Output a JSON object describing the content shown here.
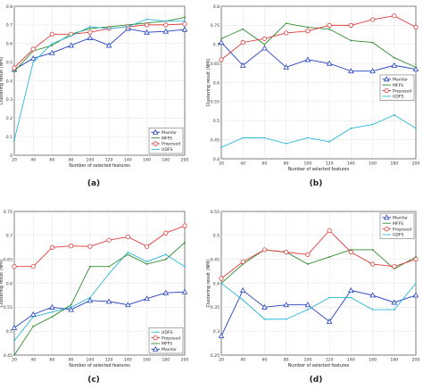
{
  "figure": {
    "panel_labels": [
      "(a)",
      "(b)",
      "(c)",
      "(d)"
    ]
  },
  "chart_data": [
    {
      "type": "line",
      "panel": "(a)",
      "xlabel": "Number of selected features",
      "ylabel": "Clustering result (NMI)",
      "x": [
        20,
        40,
        60,
        80,
        100,
        120,
        140,
        160,
        180,
        200
      ],
      "xticks": [
        "20",
        "40",
        "60",
        "80",
        "100",
        "120",
        "140",
        "160",
        "180",
        "200"
      ],
      "xlim": [
        20,
        200
      ],
      "ylim": [
        0,
        0.8
      ],
      "yticks": [
        0,
        0.1,
        0.2,
        0.3,
        0.4,
        0.5,
        0.6,
        0.7,
        0.8
      ],
      "ytick_labels": [
        "0",
        "0.1",
        "0.2",
        "0.3",
        "0.4",
        "0.5",
        "0.6",
        "0.7",
        "0.8"
      ],
      "grid": true,
      "legend": "bottom-right",
      "series": [
        {
          "name": "MaxVar",
          "color": "#1f3fbf",
          "marker": "triangle",
          "values": [
            0.46,
            0.52,
            0.55,
            0.59,
            0.63,
            0.59,
            0.68,
            0.66,
            0.665,
            0.675
          ]
        },
        {
          "name": "MFFS",
          "color": "#2e8b2e",
          "marker": "none",
          "values": [
            0.45,
            0.56,
            0.59,
            0.65,
            0.68,
            0.69,
            0.7,
            0.71,
            0.72,
            0.74
          ]
        },
        {
          "name": "Proposed",
          "color": "#e03a3a",
          "marker": "circle",
          "values": [
            0.47,
            0.57,
            0.65,
            0.65,
            0.66,
            0.68,
            0.69,
            0.7,
            0.7,
            0.705
          ]
        },
        {
          "name": "UDFS",
          "color": "#2ab8d8",
          "marker": "none",
          "values": [
            0.08,
            0.5,
            0.6,
            0.64,
            0.69,
            0.68,
            0.69,
            0.73,
            0.72,
            0.72
          ]
        }
      ]
    },
    {
      "type": "line",
      "panel": "(b)",
      "xlabel": "Number of selected features",
      "ylabel": "Clustering result (NMI)",
      "x": [
        20,
        40,
        60,
        80,
        100,
        120,
        140,
        160,
        180,
        200
      ],
      "xticks": [
        "20",
        "40",
        "60",
        "80",
        "100",
        "120",
        "140",
        "160",
        "180",
        "200"
      ],
      "xlim": [
        20,
        200
      ],
      "ylim": [
        0.4,
        0.8
      ],
      "yticks": [
        0.4,
        0.45,
        0.5,
        0.55,
        0.6,
        0.65,
        0.7,
        0.75,
        0.8
      ],
      "ytick_labels": [
        "0.4",
        "0.45",
        "0.5",
        "0.55",
        "0.6",
        "0.65",
        "0.7",
        "0.75",
        "0.8"
      ],
      "grid": true,
      "legend": "center-right",
      "series": [
        {
          "name": "MaxVar",
          "color": "#1f3fbf",
          "marker": "triangle",
          "values": [
            0.705,
            0.645,
            0.69,
            0.64,
            0.66,
            0.65,
            0.63,
            0.63,
            0.645,
            0.635
          ]
        },
        {
          "name": "MFFS",
          "color": "#2e8b2e",
          "marker": "none",
          "values": [
            0.715,
            0.74,
            0.7,
            0.755,
            0.745,
            0.74,
            0.71,
            0.705,
            0.665,
            0.64
          ]
        },
        {
          "name": "Proposed",
          "color": "#e03a3a",
          "marker": "circle",
          "values": [
            0.66,
            0.705,
            0.715,
            0.73,
            0.735,
            0.75,
            0.75,
            0.765,
            0.775,
            0.745
          ]
        },
        {
          "name": "UDFS",
          "color": "#2ab8d8",
          "marker": "none",
          "values": [
            0.43,
            0.455,
            0.455,
            0.44,
            0.455,
            0.445,
            0.48,
            0.49,
            0.515,
            0.48
          ]
        }
      ]
    },
    {
      "type": "line",
      "panel": "(c)",
      "xlabel": "Number of selected features",
      "ylabel": "Clustering result (NMI)",
      "x": [
        20,
        40,
        60,
        80,
        100,
        120,
        140,
        160,
        180,
        200
      ],
      "xticks": [
        "20",
        "40",
        "60",
        "80",
        "100",
        "120",
        "140",
        "160",
        "180",
        "200"
      ],
      "xlim": [
        20,
        200
      ],
      "ylim": [
        0.45,
        0.75
      ],
      "yticks": [
        0.45,
        0.5,
        0.55,
        0.6,
        0.65,
        0.7,
        0.75
      ],
      "ytick_labels": [
        "0.45",
        "0.5",
        "0.55",
        "0.6",
        "0.65",
        "0.7",
        "0.75"
      ],
      "grid": true,
      "legend": "bottom-right",
      "series": [
        {
          "name": "UDFS",
          "color": "#2ab8d8",
          "marker": "none",
          "values": [
            0.48,
            0.53,
            0.54,
            0.55,
            0.57,
            0.62,
            0.665,
            0.645,
            0.66,
            0.635
          ]
        },
        {
          "name": "Proposed",
          "color": "#e03a3a",
          "marker": "circle",
          "values": [
            0.635,
            0.635,
            0.675,
            0.678,
            0.677,
            0.69,
            0.697,
            0.677,
            0.705,
            0.72
          ]
        },
        {
          "name": "MFFS",
          "color": "#2e8b2e",
          "marker": "none",
          "values": [
            0.45,
            0.51,
            0.53,
            0.555,
            0.635,
            0.635,
            0.66,
            0.64,
            0.65,
            0.685
          ]
        },
        {
          "name": "MaxVar",
          "color": "#1f3fbf",
          "marker": "triangle",
          "values": [
            0.507,
            0.535,
            0.55,
            0.545,
            0.564,
            0.562,
            0.555,
            0.568,
            0.58,
            0.582
          ]
        }
      ]
    },
    {
      "type": "line",
      "panel": "(d)",
      "xlabel": "Number of selected features",
      "ylabel": "Clustering result (NMI)",
      "x": [
        20,
        40,
        60,
        80,
        100,
        120,
        140,
        160,
        180,
        200
      ],
      "xticks": [
        "20",
        "40",
        "60",
        "80",
        "100",
        "120",
        "140",
        "160",
        "180",
        "200"
      ],
      "xlim": [
        20,
        200
      ],
      "ylim": [
        0.25,
        0.55
      ],
      "yticks": [
        0.25,
        0.3,
        0.35,
        0.4,
        0.45,
        0.5,
        0.55
      ],
      "ytick_labels": [
        "0.25",
        "0.3",
        "0.35",
        "0.4",
        "0.45",
        "0.5",
        "0.55"
      ],
      "grid": true,
      "legend": "top-right",
      "series": [
        {
          "name": "MaxVar",
          "color": "#1f3fbf",
          "marker": "triangle",
          "values": [
            0.29,
            0.385,
            0.35,
            0.355,
            0.355,
            0.32,
            0.385,
            0.375,
            0.36,
            0.375
          ]
        },
        {
          "name": "MFFS",
          "color": "#2e8b2e",
          "marker": "none",
          "values": [
            0.4,
            0.44,
            0.47,
            0.465,
            0.44,
            0.455,
            0.47,
            0.47,
            0.43,
            0.455
          ]
        },
        {
          "name": "Proposed",
          "color": "#e03a3a",
          "marker": "circle",
          "values": [
            0.41,
            0.445,
            0.47,
            0.465,
            0.46,
            0.51,
            0.465,
            0.44,
            0.435,
            0.45
          ]
        },
        {
          "name": "UDFS",
          "color": "#2ab8d8",
          "marker": "none",
          "values": [
            0.4,
            0.365,
            0.325,
            0.325,
            0.345,
            0.37,
            0.37,
            0.345,
            0.345,
            0.4
          ]
        }
      ]
    }
  ]
}
